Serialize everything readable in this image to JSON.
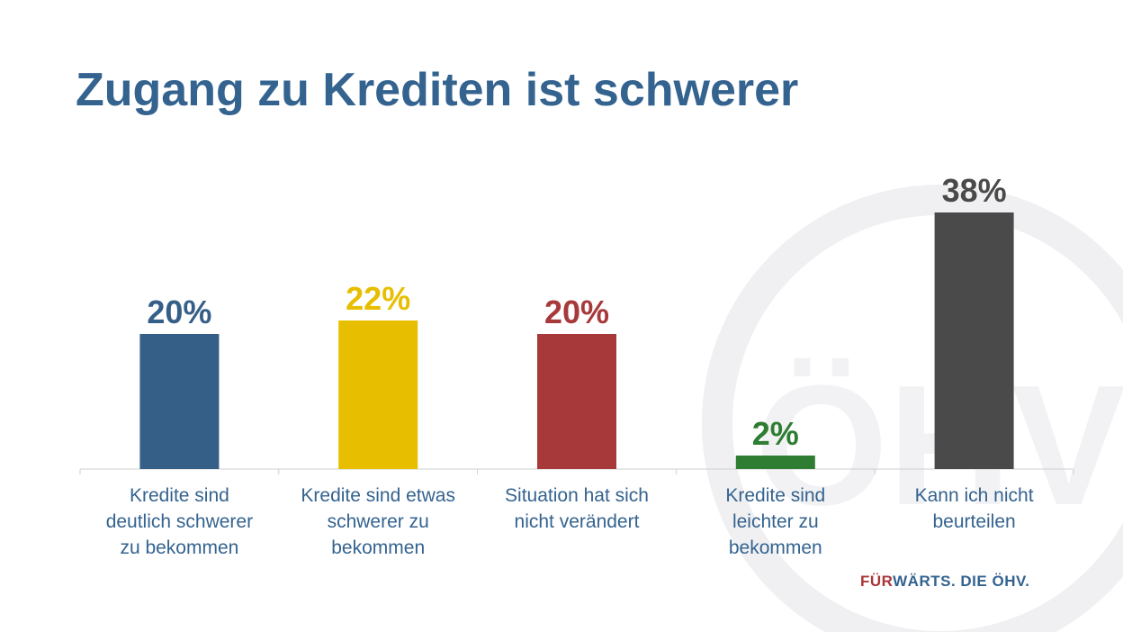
{
  "title": "Zugang zu Krediten ist schwerer",
  "tagline": {
    "accent": "FÜR",
    "rest": "WÄRTS. DIE ÖHV."
  },
  "watermark": {
    "text": "ÖHV"
  },
  "chart_data": {
    "type": "bar",
    "title": "Zugang zu Krediten ist schwerer",
    "xlabel": "",
    "ylabel": "",
    "ylim": [
      0,
      40
    ],
    "unit": "%",
    "grid": false,
    "legend": "none",
    "categories": [
      {
        "lines": [
          "Kredite sind",
          "deutlich schwerer",
          "zu bekommen"
        ]
      },
      {
        "lines": [
          "Kredite sind etwas",
          "schwerer zu",
          "bekommen"
        ]
      },
      {
        "lines": [
          "Situation hat sich",
          "nicht verändert"
        ]
      },
      {
        "lines": [
          "Kredite sind",
          "leichter zu",
          "bekommen"
        ]
      },
      {
        "lines": [
          "Kann ich nicht",
          "beurteilen"
        ]
      }
    ],
    "values": [
      20,
      22,
      20,
      2,
      38
    ],
    "value_labels": [
      "20%",
      "22%",
      "20%",
      "2%",
      "38%"
    ],
    "colors": [
      "#365f88",
      "#e8be00",
      "#a8393b",
      "#2e7d32",
      "#4a4a4a"
    ]
  }
}
